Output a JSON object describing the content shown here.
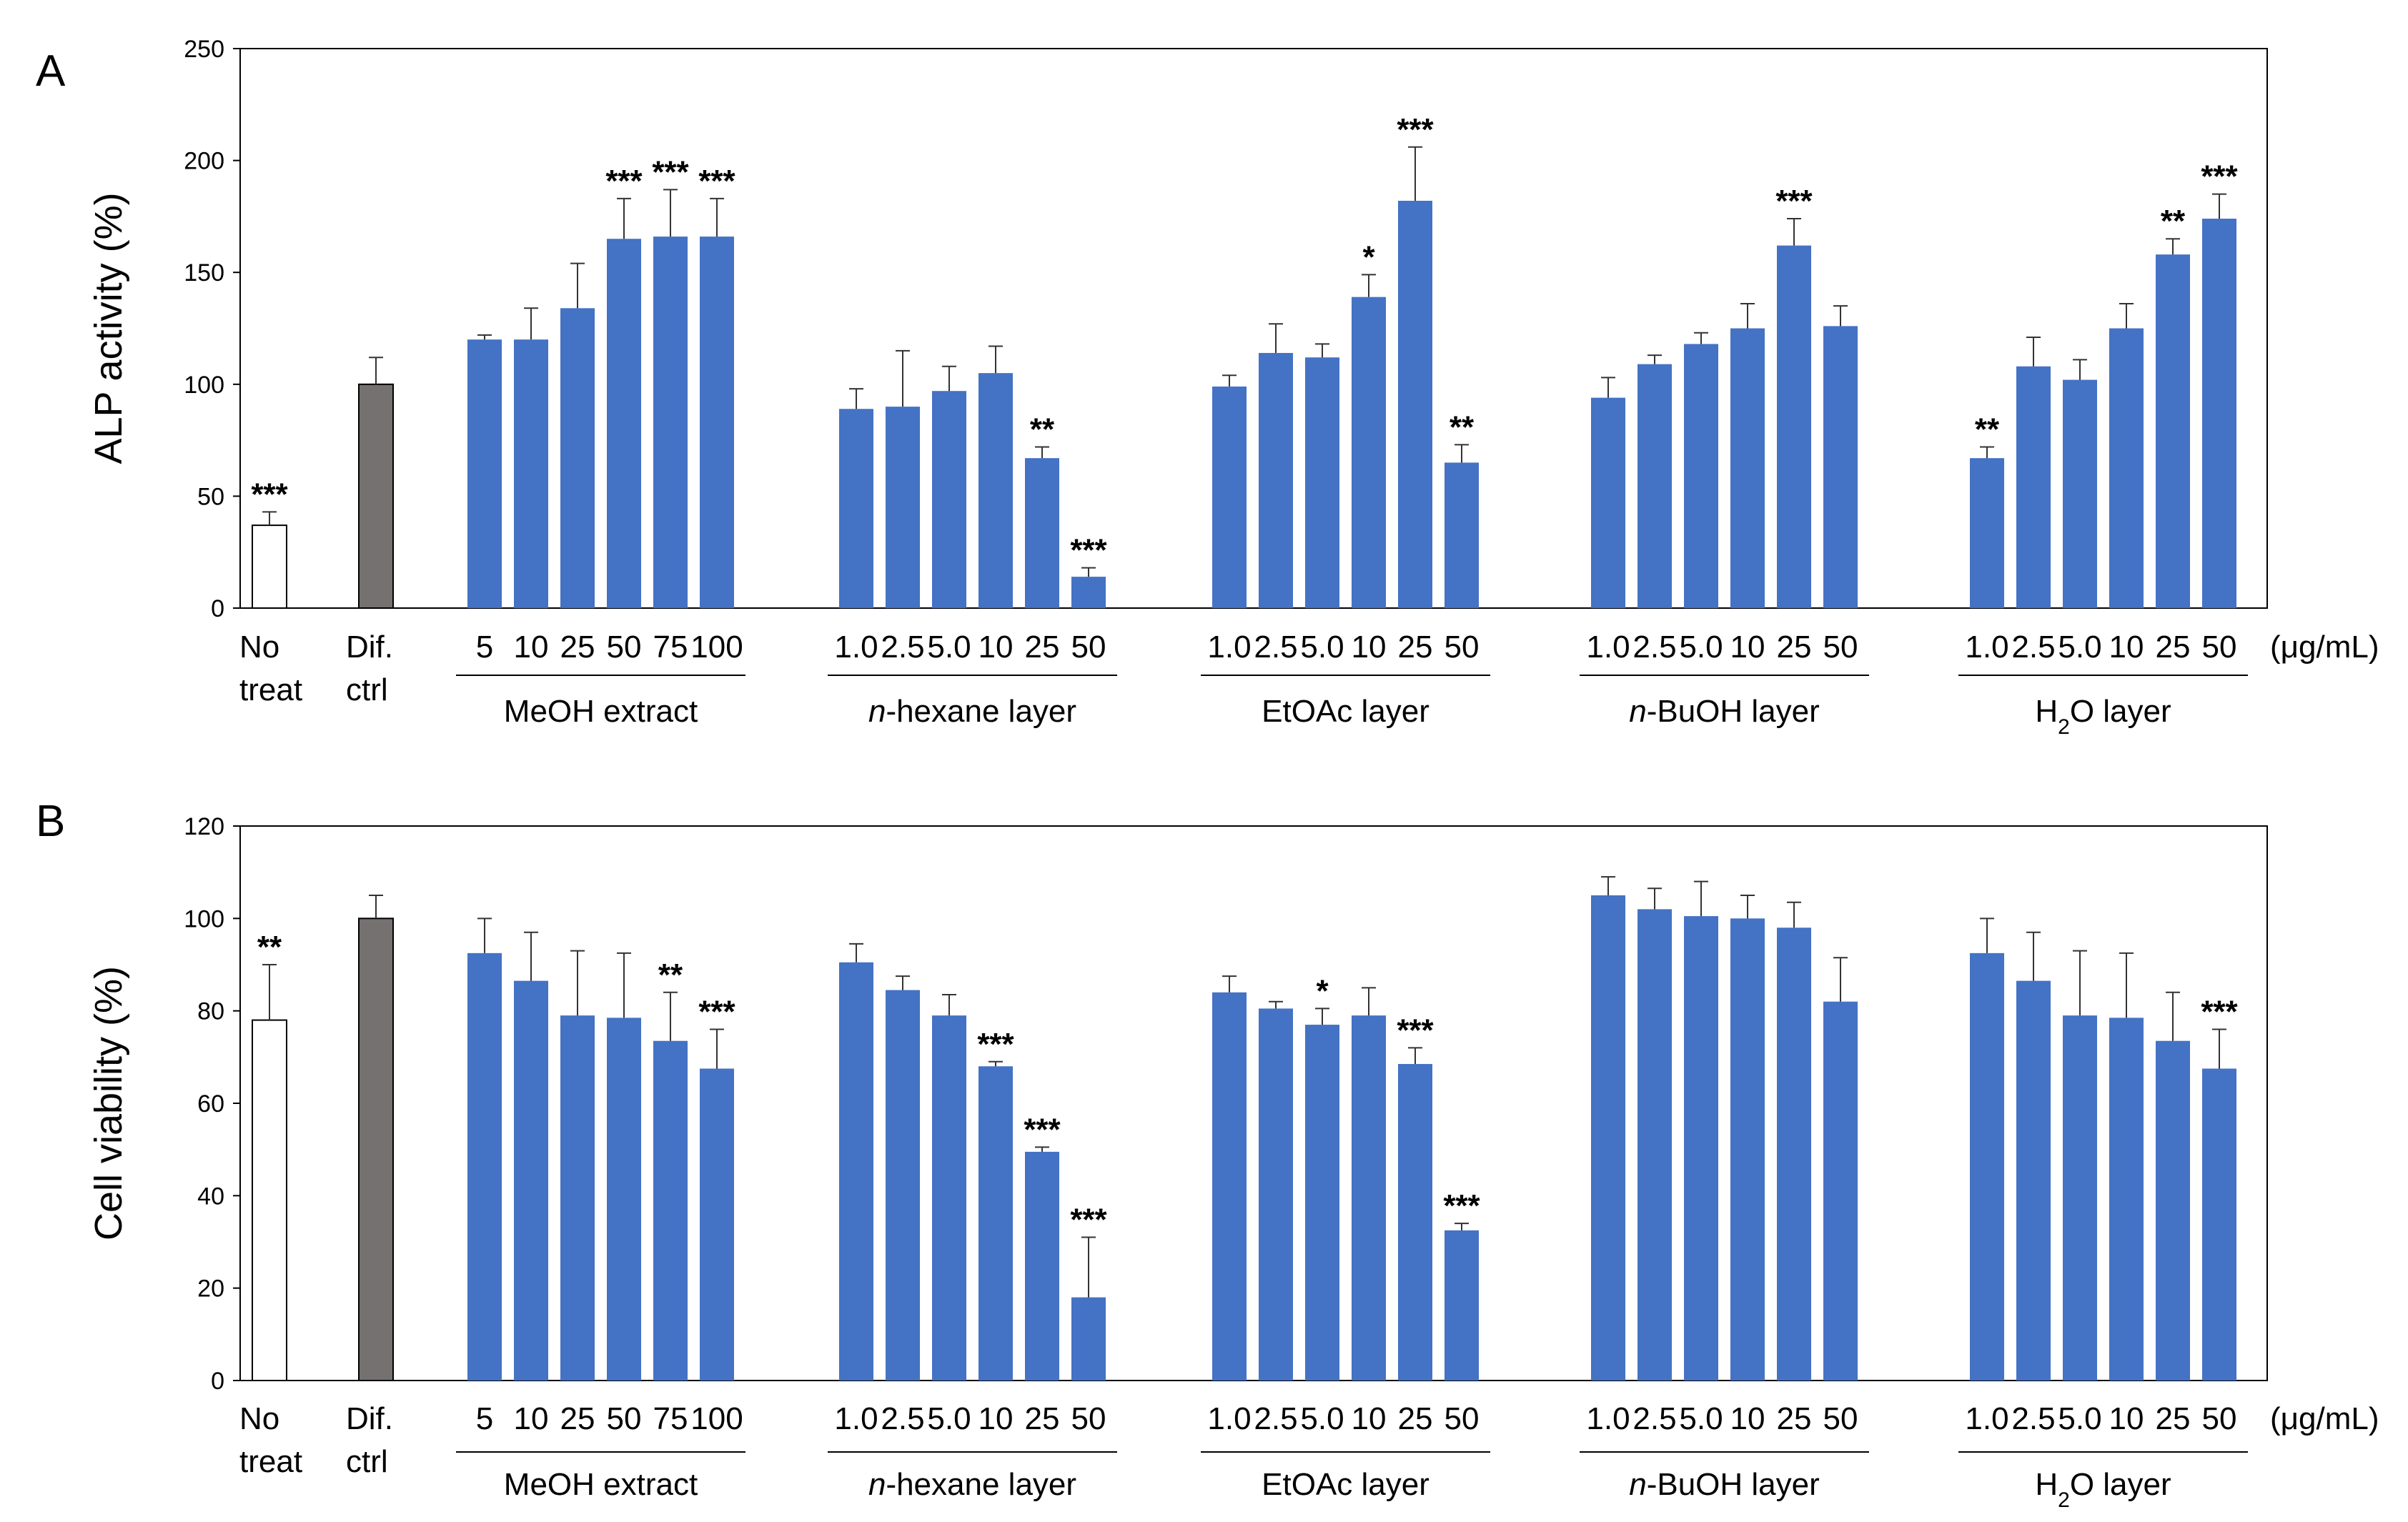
{
  "colors": {
    "blue": "#4472C4",
    "gray": "#767171",
    "white": "#FFFFFF",
    "black": "#000000"
  },
  "chart_data": [
    {
      "type": "bar",
      "panel": "A",
      "title": "",
      "xlabel": "",
      "ylabel": "ALP activity (%)",
      "ylim": [
        0,
        250
      ],
      "yticks": [
        0,
        50,
        100,
        150,
        200,
        250
      ],
      "unit_label": "(μg/mL)",
      "controls": [
        {
          "labels": [
            "No",
            "treat"
          ],
          "value": 37,
          "err": 6,
          "sig": "***",
          "fill": "white"
        },
        {
          "labels": [
            "Dif.",
            "ctrl"
          ],
          "value": 100,
          "err": 12,
          "sig": "",
          "fill": "gray"
        }
      ],
      "groups": [
        {
          "name": "MeOH extract",
          "categories": [
            "5",
            "10",
            "25",
            "50",
            "75",
            "100"
          ],
          "values": [
            120,
            120,
            134,
            165,
            166,
            166
          ],
          "errors": [
            2,
            14,
            20,
            18,
            21,
            17
          ],
          "sig": [
            "",
            "",
            "",
            "***",
            "***",
            "***"
          ]
        },
        {
          "name_italic": "n",
          "name_rest": "-hexane layer",
          "categories": [
            "1.0",
            "2.5",
            "5.0",
            "10",
            "25",
            "50"
          ],
          "values": [
            89,
            90,
            97,
            105,
            67,
            14
          ],
          "errors": [
            9,
            25,
            11,
            12,
            5,
            4
          ],
          "sig": [
            "",
            "",
            "",
            "",
            "**",
            "***"
          ]
        },
        {
          "name": "EtOAc layer",
          "categories": [
            "1.0",
            "2.5",
            "5.0",
            "10",
            "25",
            "50"
          ],
          "values": [
            99,
            114,
            112,
            139,
            182,
            65
          ],
          "errors": [
            5,
            13,
            6,
            10,
            24,
            8
          ],
          "sig": [
            "",
            "",
            "",
            "*",
            "***",
            "**"
          ]
        },
        {
          "name_italic": "n",
          "name_rest": "-BuOH layer",
          "categories": [
            "1.0",
            "2.5",
            "5.0",
            "10",
            "25",
            "50"
          ],
          "values": [
            94,
            109,
            118,
            125,
            162,
            126
          ],
          "errors": [
            9,
            4,
            5,
            11,
            12,
            9
          ],
          "sig": [
            "",
            "",
            "",
            "",
            "***",
            ""
          ]
        },
        {
          "name_pre": "H",
          "name_sub": "2",
          "name_post": "O layer",
          "categories": [
            "1.0",
            "2.5",
            "5.0",
            "10",
            "25",
            "50"
          ],
          "values": [
            67,
            108,
            102,
            125,
            158,
            174
          ],
          "errors": [
            5,
            13,
            9,
            11,
            7,
            11
          ],
          "sig": [
            "**",
            "",
            "",
            "",
            "**",
            "***"
          ]
        }
      ]
    },
    {
      "type": "bar",
      "panel": "B",
      "title": "",
      "xlabel": "",
      "ylabel": "Cell viability (%)",
      "ylim": [
        0,
        120
      ],
      "yticks": [
        0,
        20,
        40,
        60,
        80,
        100,
        120
      ],
      "unit_label": "(μg/mL)",
      "controls": [
        {
          "labels": [
            "No",
            "treat"
          ],
          "value": 78,
          "err": 12,
          "sig": "**",
          "fill": "white"
        },
        {
          "labels": [
            "Dif.",
            "ctrl"
          ],
          "value": 100,
          "err": 5,
          "sig": "",
          "fill": "gray"
        }
      ],
      "groups": [
        {
          "name": "MeOH extract",
          "categories": [
            "5",
            "10",
            "25",
            "50",
            "75",
            "100"
          ],
          "values": [
            92.5,
            86.5,
            79,
            78.5,
            73.5,
            67.5
          ],
          "errors": [
            7.5,
            10.5,
            14,
            14,
            10.5,
            8.5
          ],
          "sig": [
            "",
            "",
            "",
            "",
            "**",
            "***"
          ]
        },
        {
          "name_italic": "n",
          "name_rest": "-hexane layer",
          "categories": [
            "1.0",
            "2.5",
            "5.0",
            "10",
            "25",
            "50"
          ],
          "values": [
            90.5,
            84.5,
            79,
            68,
            49.5,
            18
          ],
          "errors": [
            4,
            3,
            4.5,
            1,
            1,
            13
          ],
          "sig": [
            "",
            "",
            "",
            "***",
            "***",
            "***"
          ]
        },
        {
          "name": "EtOAc layer",
          "categories": [
            "1.0",
            "2.5",
            "5.0",
            "10",
            "25",
            "50"
          ],
          "values": [
            84,
            80.5,
            77,
            79,
            68.5,
            32.5
          ],
          "errors": [
            3.5,
            1.5,
            3.5,
            6,
            3.5,
            1.5
          ],
          "sig": [
            "",
            "",
            "*",
            "",
            "***",
            "***"
          ]
        },
        {
          "name_italic": "n",
          "name_rest": "-BuOH layer",
          "categories": [
            "1.0",
            "2.5",
            "5.0",
            "10",
            "25",
            "50"
          ],
          "values": [
            105,
            102,
            100.5,
            100,
            98,
            82
          ],
          "errors": [
            4,
            4.5,
            7.5,
            5,
            5.5,
            9.5
          ],
          "sig": [
            "",
            "",
            "",
            "",
            "",
            ""
          ]
        },
        {
          "name_pre": "H",
          "name_sub": "2",
          "name_post": "O layer",
          "categories": [
            "1.0",
            "2.5",
            "5.0",
            "10",
            "25",
            "50"
          ],
          "values": [
            92.5,
            86.5,
            79,
            78.5,
            73.5,
            67.5
          ],
          "errors": [
            7.5,
            10.5,
            14,
            14,
            10.5,
            8.5
          ],
          "sig": [
            "",
            "",
            "",
            "",
            "",
            "***"
          ]
        }
      ]
    }
  ]
}
